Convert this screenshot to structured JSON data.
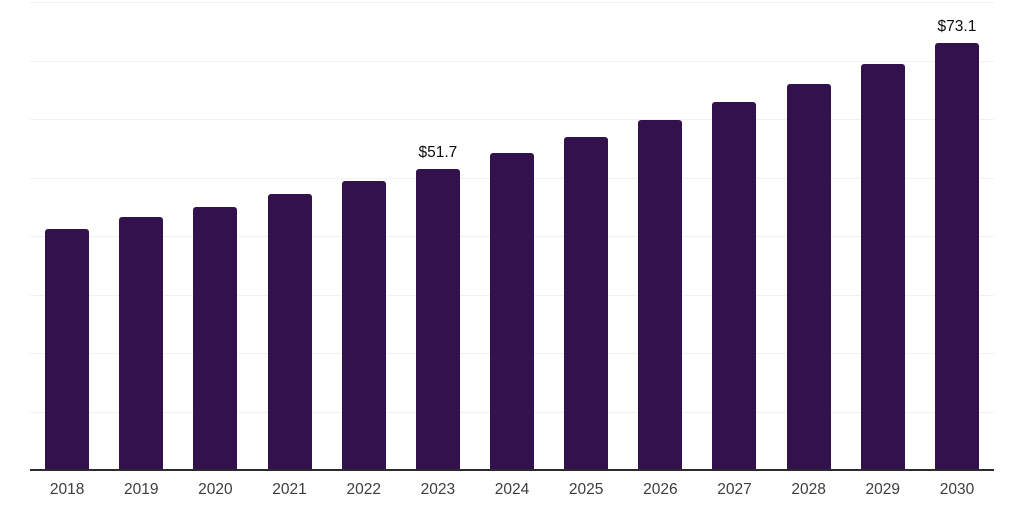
{
  "chart_data": {
    "type": "bar",
    "title": "",
    "xlabel": "",
    "ylabel": "",
    "categories": [
      "2018",
      "2019",
      "2020",
      "2021",
      "2022",
      "2023",
      "2024",
      "2025",
      "2026",
      "2027",
      "2028",
      "2029",
      "2030"
    ],
    "values": [
      41.4,
      43.4,
      45.1,
      47.4,
      49.5,
      51.7,
      54.3,
      57.1,
      60.0,
      63.0,
      66.2,
      69.6,
      73.1
    ],
    "value_labels": [
      "",
      "",
      "",
      "",
      "",
      "$51.7",
      "",
      "",
      "",
      "",
      "",
      "",
      "$73.1"
    ],
    "ylim": [
      0,
      80
    ],
    "gridline_step": 10,
    "grid": true,
    "legend": false,
    "colors": {
      "bar": "#33114D",
      "axis_line": "#2b2b2b",
      "gridline": "#f1f1f1",
      "tick_label": "#3d3d3d",
      "value_label": "#0d0d0d",
      "background": "#ffffff"
    }
  }
}
